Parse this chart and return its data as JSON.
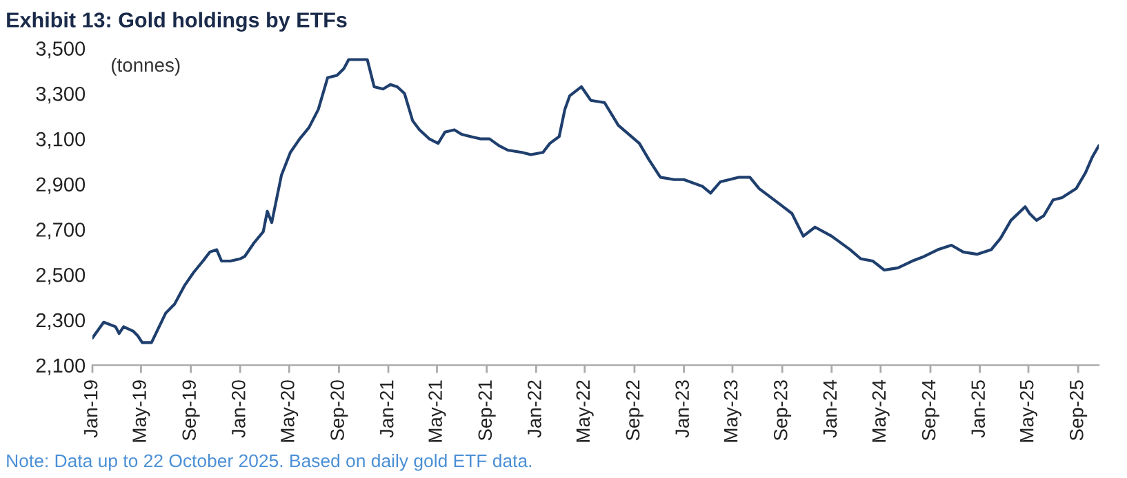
{
  "chart_data": {
    "type": "line",
    "title": "Exhibit 13: Gold holdings by ETFs",
    "ylabel": "(tonnes)",
    "annotations": [
      "Note: Data up to 22 October 2025. Based on daily gold ETF data."
    ],
    "grid": false,
    "legend": false,
    "xlim": [
      "2019-01-01",
      "2025-10-22"
    ],
    "xticks": [
      {
        "value": "2019-01-01",
        "label": "Jan-19"
      },
      {
        "value": "2019-05-01",
        "label": "May-19"
      },
      {
        "value": "2019-09-01",
        "label": "Sep-19"
      },
      {
        "value": "2020-01-01",
        "label": "Jan-20"
      },
      {
        "value": "2020-05-01",
        "label": "May-20"
      },
      {
        "value": "2020-09-01",
        "label": "Sep-20"
      },
      {
        "value": "2021-01-01",
        "label": "Jan-21"
      },
      {
        "value": "2021-05-01",
        "label": "May-21"
      },
      {
        "value": "2021-09-01",
        "label": "Sep-21"
      },
      {
        "value": "2022-01-01",
        "label": "Jan-22"
      },
      {
        "value": "2022-05-01",
        "label": "May-22"
      },
      {
        "value": "2022-09-01",
        "label": "Sep-22"
      },
      {
        "value": "2023-01-01",
        "label": "Jan-23"
      },
      {
        "value": "2023-05-01",
        "label": "May-23"
      },
      {
        "value": "2023-09-01",
        "label": "Sep-23"
      },
      {
        "value": "2024-01-01",
        "label": "Jan-24"
      },
      {
        "value": "2024-05-01",
        "label": "May-24"
      },
      {
        "value": "2024-09-01",
        "label": "Sep-24"
      },
      {
        "value": "2025-01-01",
        "label": "Jan-25"
      },
      {
        "value": "2025-05-01",
        "label": "May-25"
      },
      {
        "value": "2025-09-01",
        "label": "Sep-25"
      }
    ],
    "ylim": [
      2100,
      3500
    ],
    "yticks": [
      {
        "value": 2100,
        "label": "2,100"
      },
      {
        "value": 2300,
        "label": "2,300"
      },
      {
        "value": 2500,
        "label": "2,500"
      },
      {
        "value": 2700,
        "label": "2,700"
      },
      {
        "value": 2900,
        "label": "2,900"
      },
      {
        "value": 3100,
        "label": "3,100"
      },
      {
        "value": 3300,
        "label": "3,300"
      },
      {
        "value": 3500,
        "label": "3,500"
      }
    ],
    "x": [
      "2019-01-01",
      "2019-01-29",
      "2019-02-27",
      "2019-03-08",
      "2019-03-19",
      "2019-04-12",
      "2019-04-23",
      "2019-05-04",
      "2019-05-27",
      "2019-07-01",
      "2019-07-23",
      "2019-08-16",
      "2019-09-08",
      "2019-10-01",
      "2019-10-18",
      "2019-11-04",
      "2019-11-16",
      "2019-12-08",
      "2020-01-01",
      "2020-01-12",
      "2020-02-04",
      "2020-02-27",
      "2020-03-08",
      "2020-03-19",
      "2020-04-12",
      "2020-05-04",
      "2020-05-27",
      "2020-06-19",
      "2020-07-12",
      "2020-08-04",
      "2020-08-27",
      "2020-09-13",
      "2020-09-25",
      "2020-10-12",
      "2020-11-10",
      "2020-11-27",
      "2020-12-19",
      "2021-01-06",
      "2021-01-23",
      "2021-02-10",
      "2021-03-02",
      "2021-03-19",
      "2021-04-12",
      "2021-05-04",
      "2021-05-21",
      "2021-06-13",
      "2021-07-01",
      "2021-07-23",
      "2021-08-16",
      "2021-09-08",
      "2021-10-01",
      "2021-10-23",
      "2021-11-27",
      "2021-12-19",
      "2022-01-18",
      "2022-02-04",
      "2022-02-27",
      "2022-03-13",
      "2022-03-25",
      "2022-04-23",
      "2022-05-16",
      "2022-06-19",
      "2022-07-23",
      "2022-09-13",
      "2022-10-06",
      "2022-11-04",
      "2022-12-08",
      "2023-01-01",
      "2023-02-16",
      "2023-03-08",
      "2023-04-01",
      "2023-05-16",
      "2023-06-13",
      "2023-07-06",
      "2023-08-27",
      "2023-09-25",
      "2023-10-23",
      "2023-11-21",
      "2024-01-01",
      "2024-02-16",
      "2024-03-13",
      "2024-04-12",
      "2024-05-10",
      "2024-06-13",
      "2024-07-18",
      "2024-08-16",
      "2024-09-19",
      "2024-10-23",
      "2024-11-21",
      "2024-12-25",
      "2025-01-29",
      "2025-02-21",
      "2025-03-19",
      "2025-04-23",
      "2025-05-04",
      "2025-05-21",
      "2025-06-08",
      "2025-07-01",
      "2025-07-23",
      "2025-08-27",
      "2025-09-19",
      "2025-10-06",
      "2025-10-22"
    ],
    "series": [
      {
        "color": "#1f3f6e",
        "line_style": "solid",
        "marker": "none",
        "values": [
          2220,
          2290,
          2270,
          2240,
          2270,
          2250,
          2230,
          2200,
          2200,
          2330,
          2370,
          2450,
          2510,
          2560,
          2600,
          2610,
          2560,
          2560,
          2570,
          2580,
          2640,
          2690,
          2780,
          2730,
          2940,
          3040,
          3100,
          3150,
          3230,
          3370,
          3380,
          3410,
          3450,
          3450,
          3450,
          3330,
          3320,
          3340,
          3330,
          3300,
          3180,
          3140,
          3100,
          3080,
          3130,
          3140,
          3120,
          3110,
          3100,
          3100,
          3070,
          3050,
          3040,
          3030,
          3040,
          3080,
          3110,
          3230,
          3290,
          3330,
          3270,
          3260,
          3160,
          3080,
          3010,
          2930,
          2920,
          2920,
          2890,
          2860,
          2910,
          2930,
          2930,
          2880,
          2810,
          2770,
          2670,
          2710,
          2670,
          2610,
          2570,
          2560,
          2520,
          2530,
          2560,
          2580,
          2610,
          2630,
          2600,
          2590,
          2610,
          2660,
          2740,
          2800,
          2770,
          2740,
          2760,
          2830,
          2840,
          2880,
          2950,
          3020,
          3070
        ]
      }
    ]
  }
}
